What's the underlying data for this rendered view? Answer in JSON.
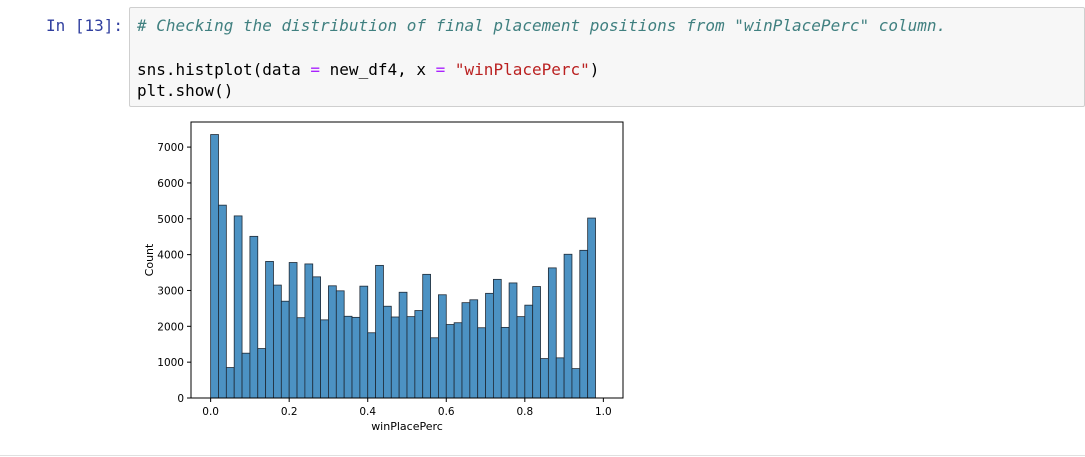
{
  "cell": {
    "prompt": "In [13]:",
    "code": {
      "comment": "# Checking the distribution of final placement positions from \"winPlacePerc\" column.",
      "line2_a": "sns.histplot(data ",
      "line2_eq1": "=",
      "line2_b": " new_df4, x ",
      "line2_eq2": "=",
      "line2_c": " ",
      "line2_str": "\"winPlacePerc\"",
      "line2_d": ")",
      "line3": "plt.show()"
    }
  },
  "colors": {
    "bar_fill": "#4c92c3",
    "bar_edge": "#1f2a36",
    "prompt": "#303f9f",
    "comment": "#408080",
    "string": "#ba2121",
    "operator": "#aa22ff"
  },
  "chart_data": {
    "type": "bar",
    "title": "",
    "xlabel": "winPlacePerc",
    "ylabel": "Count",
    "xlim": [
      -0.05,
      1.05
    ],
    "ylim": [
      0,
      7700
    ],
    "xticks": [
      "0.0",
      "0.2",
      "0.4",
      "0.6",
      "0.8",
      "1.0"
    ],
    "xtick_values": [
      0.0,
      0.2,
      0.4,
      0.6,
      0.8,
      1.0
    ],
    "yticks": [
      "0",
      "1000",
      "2000",
      "3000",
      "4000",
      "5000",
      "6000",
      "7000"
    ],
    "ytick_values": [
      0,
      1000,
      2000,
      3000,
      4000,
      5000,
      6000,
      7000
    ],
    "bin_start": 0.0,
    "bin_width": 0.02,
    "values": [
      7350,
      5380,
      850,
      5080,
      1250,
      4510,
      1380,
      3810,
      3150,
      2700,
      3780,
      2240,
      3740,
      3380,
      2180,
      3130,
      2990,
      2280,
      2250,
      3120,
      1820,
      3700,
      2560,
      2260,
      2950,
      2270,
      2440,
      3450,
      1680,
      2880,
      2050,
      2100,
      2660,
      2740,
      1960,
      2920,
      3310,
      1970,
      3210,
      2270,
      2590,
      3110,
      1100,
      3630,
      1120,
      4010,
      820,
      4120,
      5020
    ]
  }
}
